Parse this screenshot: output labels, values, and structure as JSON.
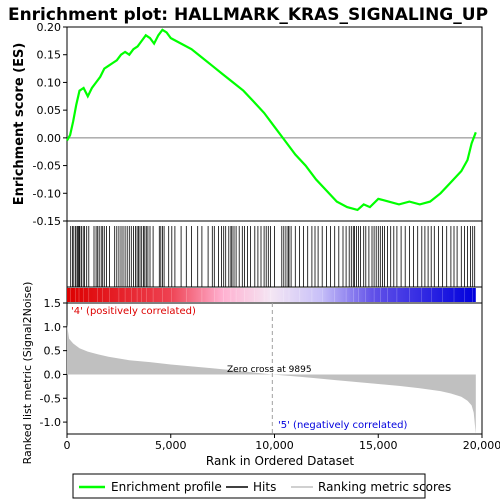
{
  "chart_data": {
    "type": "line",
    "title": "Enrichment plot: HALLMARK_KRAS_SIGNALING_UP",
    "top_panel": {
      "ylabel": "Enrichment score (ES)",
      "ylim": [
        -0.15,
        0.2
      ],
      "yticks": [
        "0.20",
        "0.15",
        "0.10",
        "0.05",
        "0.00",
        "-0.05",
        "-0.10",
        "-0.15"
      ],
      "ytick_values": [
        0.2,
        0.15,
        0.1,
        0.05,
        0.0,
        -0.05,
        -0.1,
        -0.15
      ],
      "series": [
        {
          "name": "Enrichment profile",
          "color": "#00ff00",
          "x": [
            0,
            150,
            300,
            450,
            600,
            800,
            1000,
            1200,
            1400,
            1600,
            1800,
            2000,
            2200,
            2400,
            2600,
            2800,
            3000,
            3200,
            3400,
            3600,
            3800,
            4000,
            4200,
            4400,
            4600,
            4800,
            5000,
            5500,
            6000,
            6500,
            7000,
            7500,
            8000,
            8500,
            9000,
            9500,
            10000,
            10500,
            11000,
            11500,
            12000,
            12500,
            13000,
            13500,
            14000,
            14300,
            14600,
            15000,
            15500,
            16000,
            16500,
            17000,
            17500,
            18000,
            18500,
            19000,
            19300,
            19500,
            19700
          ],
          "y": [
            -0.005,
            0.005,
            0.03,
            0.06,
            0.085,
            0.09,
            0.075,
            0.09,
            0.1,
            0.11,
            0.125,
            0.13,
            0.135,
            0.14,
            0.15,
            0.155,
            0.15,
            0.16,
            0.165,
            0.175,
            0.185,
            0.18,
            0.17,
            0.185,
            0.195,
            0.19,
            0.18,
            0.17,
            0.16,
            0.145,
            0.13,
            0.115,
            0.1,
            0.085,
            0.065,
            0.045,
            0.02,
            -0.005,
            -0.03,
            -0.05,
            -0.075,
            -0.095,
            -0.115,
            -0.125,
            -0.13,
            -0.12,
            -0.125,
            -0.11,
            -0.115,
            -0.12,
            -0.115,
            -0.12,
            -0.115,
            -0.1,
            -0.08,
            -0.06,
            -0.04,
            -0.01,
            0.01
          ]
        }
      ]
    },
    "hits_panel": {
      "label": "Hits",
      "hit_positions": [
        180,
        260,
        330,
        410,
        480,
        530,
        580,
        620,
        700,
        780,
        850,
        950,
        1050,
        1300,
        1400,
        1480,
        1550,
        1650,
        1720,
        1800,
        1900,
        2050,
        2300,
        2400,
        2500,
        2600,
        2700,
        2800,
        2900,
        3000,
        3100,
        3200,
        3300,
        3380,
        3450,
        3520,
        3600,
        3680,
        3750,
        3820,
        3900,
        4000,
        4150,
        4450,
        4520,
        4600,
        4680,
        4900,
        5050,
        5200,
        5500,
        5750,
        6000,
        6300,
        6500,
        6800,
        7000,
        7100,
        7300,
        7450,
        7550,
        7650,
        7800,
        7900,
        7950,
        8050,
        8150,
        8300,
        8450,
        8550,
        8700,
        8850,
        9050,
        9200,
        9350,
        9500,
        9600,
        9700,
        9800,
        10000,
        10350,
        10450,
        10550,
        10650,
        10700,
        10800,
        11000,
        11200,
        11400,
        11600,
        11800,
        11950,
        12100,
        12300,
        12500,
        12700,
        12900,
        13100,
        13300,
        13450,
        13600,
        13700,
        13800,
        13850,
        13950,
        14050,
        14150,
        14300,
        14400,
        14550,
        14700,
        14800,
        14900,
        15000,
        15100,
        15200,
        15300,
        15450,
        15600,
        15750,
        15900,
        16100,
        16300,
        16500,
        16700,
        16900,
        17100,
        17250,
        17400,
        17550,
        17700,
        17900,
        18100,
        18300,
        18500,
        18650,
        18800,
        19000,
        19150,
        19300,
        19450,
        19550,
        19650
      ]
    },
    "bottom_panel": {
      "ylabel": "Ranked list metric (Signal2Noise)",
      "ylim": [
        -1.25,
        1.5
      ],
      "yticks": [
        "1.5",
        "1.0",
        "0.5",
        "0.0",
        "-0.5",
        "-1.0"
      ],
      "ytick_values": [
        1.5,
        1.0,
        0.5,
        0.0,
        -0.5,
        -1.0
      ],
      "series": [
        {
          "name": "Ranking metric scores",
          "color": "#c0c0c0",
          "x": [
            0,
            100,
            300,
            600,
            1000,
            1500,
            2000,
            3000,
            4000,
            5000,
            6000,
            7000,
            8000,
            9000,
            9895,
            11000,
            12000,
            13000,
            14000,
            15000,
            16000,
            17000,
            18000,
            18500,
            19000,
            19300,
            19500,
            19600,
            19700
          ],
          "y": [
            1.05,
            0.75,
            0.65,
            0.55,
            0.48,
            0.42,
            0.37,
            0.3,
            0.26,
            0.21,
            0.17,
            0.13,
            0.09,
            0.04,
            0.0,
            -0.04,
            -0.08,
            -0.12,
            -0.16,
            -0.2,
            -0.24,
            -0.29,
            -0.35,
            -0.4,
            -0.47,
            -0.55,
            -0.65,
            -0.8,
            -1.25
          ]
        }
      ],
      "annotations": {
        "pos_label": "'4' (positively correlated)",
        "neg_label": "'5' (negatively correlated)",
        "zero_cross": "Zero cross at 9895",
        "zero_cross_x": 9895
      },
      "pos_color": "#dd0000",
      "neg_color": "#0000dd"
    },
    "x_axis": {
      "xlabel": "Rank in Ordered Dataset",
      "xlim": [
        0,
        20000
      ],
      "xticks": [
        "0",
        "5,000",
        "10,000",
        "15,000",
        "20,000"
      ],
      "xtick_values": [
        0,
        5000,
        10000,
        15000,
        20000
      ],
      "n_genes": 19700
    },
    "legend": {
      "placement": "bottom",
      "entries": [
        {
          "label": "Enrichment profile",
          "color": "#00ff00"
        },
        {
          "label": "Hits",
          "color": "#000000"
        },
        {
          "label": "Ranking metric scores",
          "color": "#c0c0c0"
        }
      ]
    }
  }
}
